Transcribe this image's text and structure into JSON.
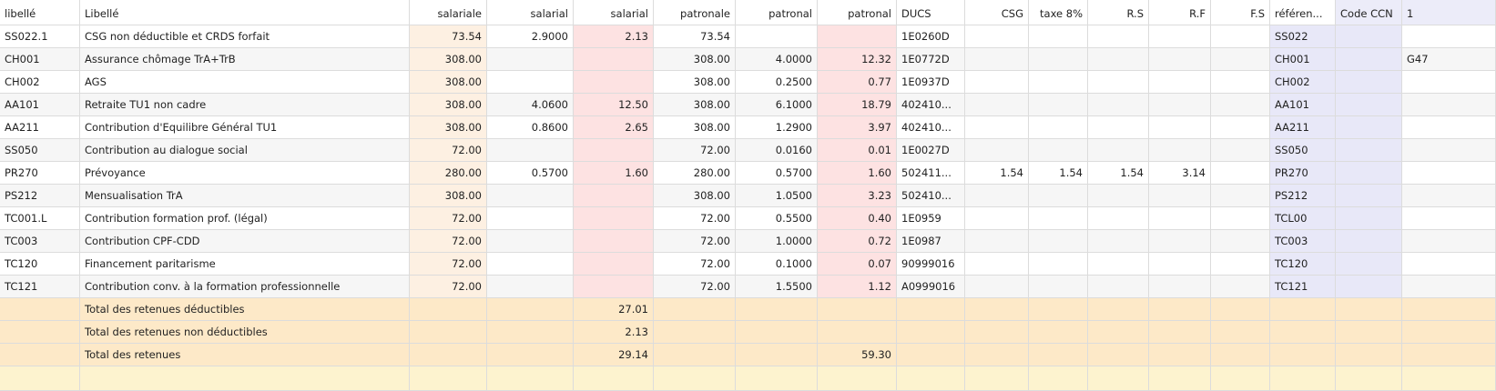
{
  "table": {
    "header": [
      "libellé",
      "Libellé",
      "salariale",
      "salarial",
      "salarial",
      "patronale",
      "patronal",
      "patronal",
      "DUCS",
      "CSG",
      "taxe 8%",
      "R.S",
      "R.F",
      "F.S",
      "référen...",
      "Code CCN",
      "1"
    ],
    "rows": [
      [
        "SS022.1",
        "CSG non déductible et CRDS forfait",
        "73.54",
        "2.9000",
        "2.13",
        "73.54",
        null,
        null,
        "1E0260D",
        null,
        null,
        null,
        null,
        null,
        "SS022",
        null,
        null
      ],
      [
        "CH001",
        "Assurance chômage TrA+TrB",
        "308.00",
        null,
        null,
        "308.00",
        "4.0000",
        "12.32",
        "1E0772D",
        null,
        null,
        null,
        null,
        null,
        "CH001",
        null,
        "G47"
      ],
      [
        "CH002",
        "AGS",
        "308.00",
        null,
        null,
        "308.00",
        "0.2500",
        "0.77",
        "1E0937D",
        null,
        null,
        null,
        null,
        null,
        "CH002",
        null,
        null
      ],
      [
        "AA101",
        "Retraite TU1 non cadre",
        "308.00",
        "4.0600",
        "12.50",
        "308.00",
        "6.1000",
        "18.79",
        "402410...",
        null,
        null,
        null,
        null,
        null,
        "AA101",
        null,
        null
      ],
      [
        "AA211",
        "Contribution d'Equilibre Général TU1",
        "308.00",
        "0.8600",
        "2.65",
        "308.00",
        "1.2900",
        "3.97",
        "402410...",
        null,
        null,
        null,
        null,
        null,
        "AA211",
        null,
        null
      ],
      [
        "SS050",
        "Contribution au dialogue social",
        "72.00",
        null,
        null,
        "72.00",
        "0.0160",
        "0.01",
        "1E0027D",
        null,
        null,
        null,
        null,
        null,
        "SS050",
        null,
        null
      ],
      [
        "PR270",
        "Prévoyance",
        "280.00",
        "0.5700",
        "1.60",
        "280.00",
        "0.5700",
        "1.60",
        "502411...",
        "1.54",
        "1.54",
        "1.54",
        "3.14",
        null,
        "PR270",
        null,
        null
      ],
      [
        "PS212",
        "Mensualisation TrA",
        "308.00",
        null,
        null,
        "308.00",
        "1.0500",
        "3.23",
        "502410...",
        null,
        null,
        null,
        null,
        null,
        "PS212",
        null,
        null
      ],
      [
        "TC001.L",
        "Contribution formation prof. (légal)",
        "72.00",
        null,
        null,
        "72.00",
        "0.5500",
        "0.40",
        "1E0959",
        null,
        null,
        null,
        null,
        null,
        "TCL00",
        null,
        null
      ],
      [
        "TC003",
        "Contribution CPF-CDD",
        "72.00",
        null,
        null,
        "72.00",
        "1.0000",
        "0.72",
        "1E0987",
        null,
        null,
        null,
        null,
        null,
        "TC003",
        null,
        null
      ],
      [
        "TC120",
        "Financement paritarisme",
        "72.00",
        null,
        null,
        "72.00",
        "0.1000",
        "0.07",
        "90999016",
        null,
        null,
        null,
        null,
        null,
        "TC120",
        null,
        null
      ],
      [
        "TC121",
        "Contribution conv. à la formation professionnelle",
        "72.00",
        null,
        null,
        "72.00",
        "1.5500",
        "1.12",
        "A0999016",
        null,
        null,
        null,
        null,
        null,
        "TC121",
        null,
        null
      ]
    ],
    "totals": [
      [
        "Total des retenues déductibles",
        "27.01",
        null
      ],
      [
        "Total des retenues non déductibles",
        "2.13",
        null
      ],
      [
        "Total des retenues",
        "29.14",
        "59.30"
      ]
    ]
  }
}
